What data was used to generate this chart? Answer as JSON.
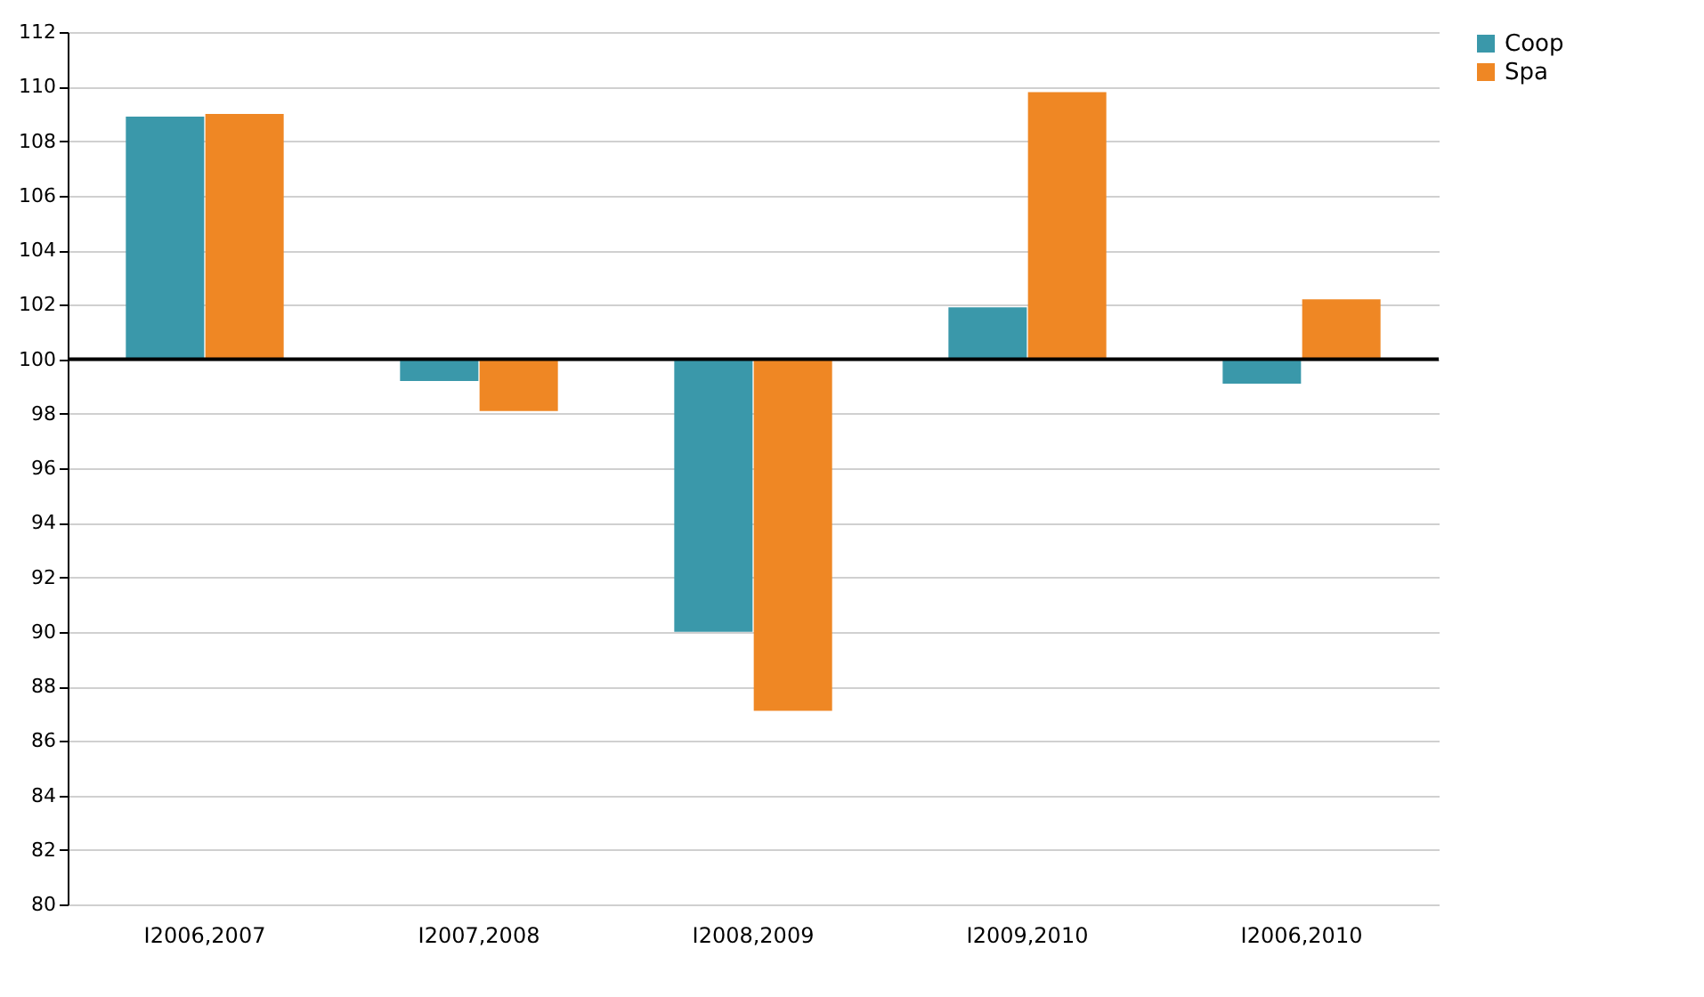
{
  "chart_data": {
    "type": "bar",
    "categories": [
      "I2006,2007",
      "I2007,2008",
      "I2008,2009",
      "I2009,2010",
      "I2006,2010"
    ],
    "series": [
      {
        "name": "Coop",
        "color": "#3a98aa",
        "base": [
          100,
          100,
          100,
          100,
          100
        ],
        "values": [
          8.9,
          -0.8,
          -10,
          1.9,
          -0.9
        ]
      },
      {
        "name": "Spa",
        "color": "#ef8724",
        "base": [
          100,
          100,
          100,
          100,
          100
        ],
        "values": [
          9,
          -1.9,
          -12.9,
          9.8,
          2.2
        ]
      }
    ],
    "ylim": [
      80,
      112
    ],
    "yticks": [
      80,
      82,
      84,
      86,
      88,
      90,
      92,
      94,
      96,
      98,
      100,
      102,
      104,
      106,
      108,
      110,
      112
    ],
    "ref_lines": [
      {
        "axis": "y",
        "value": 100,
        "color": "#000000"
      }
    ],
    "grid": "y",
    "legend": "right"
  }
}
